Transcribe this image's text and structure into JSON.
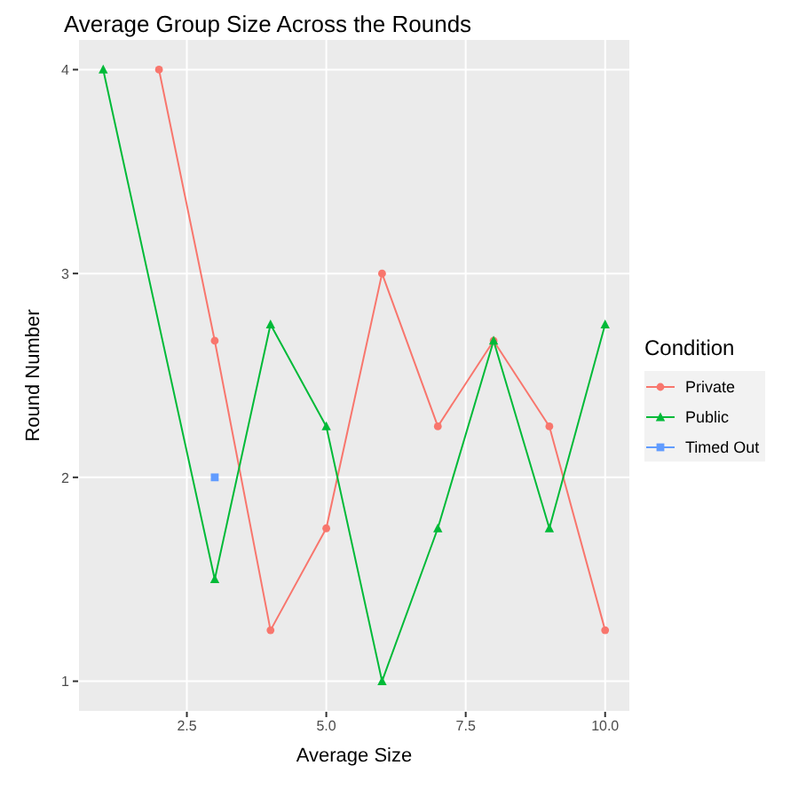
{
  "chart_data": {
    "type": "line",
    "title": "Average Group Size Across the Rounds",
    "xlabel": "Average Size",
    "ylabel": "Round Number",
    "legend_title": "Condition",
    "legend": "right",
    "grid": true,
    "xlim": [
      0.55,
      10.45
    ],
    "xticks": [
      2.5,
      {
        "value": 5,
        "label": "5.0"
      },
      7.5,
      {
        "value": 10,
        "label": "10.0"
      }
    ],
    "ylim": [
      0.85,
      4.15
    ],
    "yticks": [
      1,
      2,
      3,
      4
    ],
    "series": [
      {
        "name": "Private",
        "color": "#f8766d",
        "marker": "circle",
        "x": [
          2,
          3,
          4,
          5,
          6,
          7,
          8,
          9,
          10
        ],
        "values": [
          4,
          2.67,
          1.25,
          1.75,
          3,
          2.25,
          2.67,
          2.25,
          1.25
        ]
      },
      {
        "name": "Public",
        "color": "#00ba38",
        "marker": "triangle",
        "x": [
          1,
          3,
          4,
          5,
          6,
          7,
          8,
          9,
          10
        ],
        "values": [
          4,
          1.5,
          2.75,
          2.25,
          1,
          1.75,
          2.67,
          1.75,
          2.75
        ]
      },
      {
        "name": "Timed Out",
        "color": "#619cff",
        "marker": "square",
        "x": [
          3
        ],
        "values": [
          2
        ]
      }
    ]
  }
}
